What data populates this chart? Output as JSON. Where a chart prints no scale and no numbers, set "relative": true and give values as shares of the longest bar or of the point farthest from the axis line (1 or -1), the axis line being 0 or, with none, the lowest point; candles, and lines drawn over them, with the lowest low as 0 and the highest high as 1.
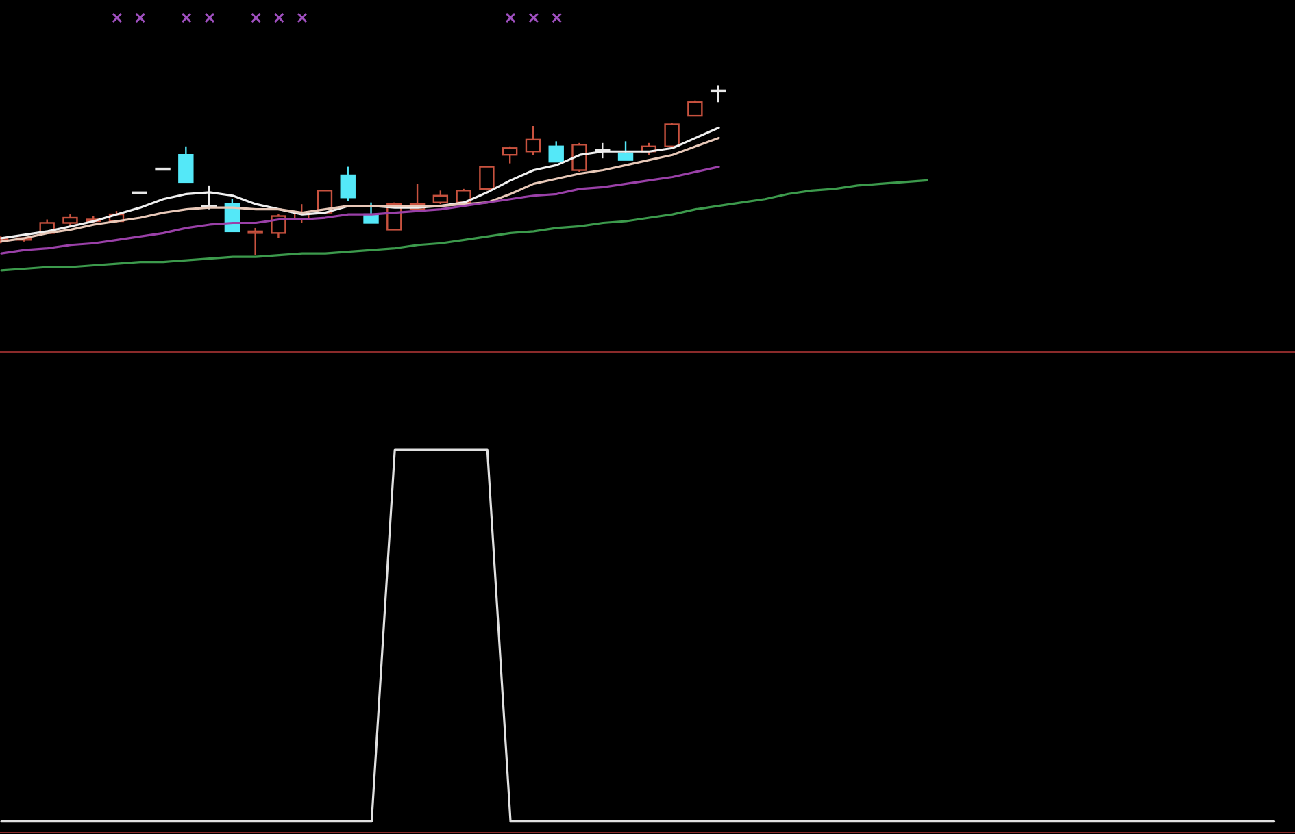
{
  "chart_data": [
    {
      "type": "candlestick",
      "relative": true,
      "tick_labels": false,
      "categories": [
        null,
        null,
        null,
        null,
        null,
        null,
        null,
        null,
        null,
        null,
        null,
        null,
        null,
        null,
        null,
        null,
        null,
        null,
        null,
        null,
        null,
        null,
        null,
        null,
        null,
        null,
        null,
        null,
        null,
        null,
        null,
        null,
        null,
        null,
        null,
        null,
        null,
        null,
        null,
        null,
        null,
        null,
        null,
        null,
        null,
        null,
        null,
        null,
        null,
        null,
        null,
        null,
        null,
        null,
        null,
        null
      ],
      "ohlc": [
        [
          0.09,
          0.11,
          0.07,
          0.1
        ],
        [
          0.09,
          0.1,
          0.08,
          0.1
        ],
        [
          0.13,
          0.21,
          0.13,
          0.19
        ],
        [
          0.19,
          0.24,
          0.17,
          0.22
        ],
        [
          0.2,
          0.23,
          0.19,
          0.21
        ],
        [
          0.2,
          0.26,
          0.19,
          0.24
        ],
        [
          0.37,
          0.37,
          0.37,
          0.37
        ],
        [
          0.51,
          0.51,
          0.51,
          0.51
        ],
        [
          0.59,
          0.64,
          0.43,
          0.43
        ],
        [
          0.29,
          0.41,
          0.27,
          0.29
        ],
        [
          0.3,
          0.33,
          0.14,
          0.14
        ],
        [
          0.13,
          0.16,
          0,
          0.14
        ],
        [
          0.13,
          0.24,
          0.1,
          0.23
        ],
        [
          0.21,
          0.3,
          0.19,
          0.25
        ],
        [
          0.25,
          0.38,
          0.24,
          0.38
        ],
        [
          0.47,
          0.52,
          0.32,
          0.34
        ],
        [
          0.24,
          0.31,
          0.19,
          0.19
        ],
        [
          0.15,
          0.31,
          0.15,
          0.3
        ],
        [
          0.27,
          0.42,
          0.26,
          0.3
        ],
        [
          0.31,
          0.38,
          0.3,
          0.35
        ],
        [
          0.31,
          0.39,
          0.3,
          0.38
        ],
        [
          0.39,
          0.52,
          0.38,
          0.52
        ],
        [
          0.59,
          0.64,
          0.54,
          0.63
        ],
        [
          0.61,
          0.76,
          0.59,
          0.68
        ],
        [
          0.64,
          0.67,
          0.55,
          0.55
        ],
        [
          0.5,
          0.66,
          0.49,
          0.65
        ],
        [
          0.62,
          0.66,
          0.57,
          0.62
        ],
        [
          0.6,
          0.67,
          0.56,
          0.56
        ],
        [
          0.61,
          0.66,
          0.59,
          0.64
        ],
        [
          0.64,
          0.78,
          0.64,
          0.77
        ],
        [
          0.82,
          0.91,
          0.82,
          0.9
        ],
        [
          0.97,
          1,
          0.9,
          0.97
        ],
        null,
        null,
        null,
        null,
        null,
        null,
        null,
        null,
        null,
        null,
        null,
        null,
        null,
        null,
        null,
        null,
        null,
        null,
        null,
        null,
        null,
        null,
        null,
        null
      ],
      "colors": [
        "#c8523f",
        "#c8523f",
        "#c8523f",
        "#c8523f",
        "#c8523f",
        "#c8523f",
        "#e8e8e8",
        "#e8e8e8",
        "#54e8f8",
        "#e8e8e8",
        "#54e8f8",
        "#c8523f",
        "#c8523f",
        "#c8523f",
        "#c8523f",
        "#54e8f8",
        "#54e8f8",
        "#c8523f",
        "#c8523f",
        "#c8523f",
        "#c8523f",
        "#c8523f",
        "#c8523f",
        "#c8523f",
        "#54e8f8",
        "#c8523f",
        "#e8e8e8",
        "#54e8f8",
        "#c8523f",
        "#c8523f",
        "#c8523f",
        "#e8e8e8",
        null,
        null,
        null,
        null,
        null,
        null,
        null,
        null,
        null,
        null,
        null,
        null,
        null,
        null,
        null,
        null,
        null,
        null,
        null,
        null,
        null,
        null,
        null,
        null
      ],
      "series": [
        {
          "type": "line",
          "color": "#f0f0f0",
          "values": [
            0.1,
            0.12,
            0.14,
            0.17,
            0.2,
            0.24,
            0.28,
            0.33,
            0.36,
            0.37,
            0.35,
            0.3,
            0.27,
            0.24,
            0.25,
            0.29,
            0.29,
            0.28,
            0.28,
            0.29,
            0.31,
            0.37,
            0.44,
            0.5,
            0.53,
            0.59,
            0.61,
            0.61,
            0.61,
            0.63,
            0.69,
            0.75,
            null,
            null,
            null,
            null,
            null,
            null,
            null,
            null,
            null,
            null,
            null,
            null,
            null,
            null,
            null,
            null,
            null,
            null,
            null,
            null,
            null,
            null,
            null,
            null
          ]
        },
        {
          "type": "line",
          "color": "#e8c8b8",
          "values": [
            0.08,
            0.1,
            0.13,
            0.15,
            0.18,
            0.2,
            0.22,
            0.25,
            0.27,
            0.28,
            0.28,
            0.27,
            0.27,
            0.25,
            0.27,
            0.29,
            0.29,
            0.29,
            0.29,
            0.29,
            0.3,
            0.31,
            0.36,
            0.42,
            0.45,
            0.48,
            0.5,
            0.53,
            0.56,
            0.59,
            0.64,
            0.69,
            null,
            null,
            null,
            null,
            null,
            null,
            null,
            null,
            null,
            null,
            null,
            null,
            null,
            null,
            null,
            null,
            null,
            null,
            null,
            null,
            null,
            null,
            null,
            null
          ]
        },
        {
          "type": "line",
          "color": "#9a40a8",
          "values": [
            0.01,
            0.03,
            0.04,
            0.06,
            0.07,
            0.09,
            0.11,
            0.13,
            0.16,
            0.18,
            0.19,
            0.19,
            0.21,
            0.21,
            0.22,
            0.24,
            0.24,
            0.25,
            0.26,
            0.27,
            0.29,
            0.31,
            0.33,
            0.35,
            0.36,
            0.39,
            0.4,
            0.42,
            0.44,
            0.46,
            0.49,
            0.52,
            null,
            null,
            null,
            null,
            null,
            null,
            null,
            null,
            null,
            null,
            null,
            null,
            null,
            null,
            null,
            null,
            null,
            null,
            null,
            null,
            null,
            null,
            null,
            null
          ]
        },
        {
          "type": "line",
          "color": "#3c9a4c",
          "values": [
            -0.09,
            -0.08,
            -0.07,
            -0.07,
            -0.06,
            -0.05,
            -0.04,
            -0.04,
            -0.03,
            -0.02,
            -0.01,
            -0.01,
            0,
            0.01,
            0.01,
            0.02,
            0.03,
            0.04,
            0.06,
            0.07,
            0.09,
            0.11,
            0.13,
            0.14,
            0.16,
            0.17,
            0.19,
            0.2,
            0.22,
            0.24,
            0.27,
            0.29,
            0.31,
            0.33,
            0.36,
            0.38,
            0.39,
            0.41,
            0.42,
            0.43,
            0.44,
            null,
            null,
            null,
            null,
            null,
            null,
            null,
            null,
            null,
            null,
            null,
            null,
            null,
            null,
            null
          ]
        }
      ]
    },
    {
      "type": "line",
      "relative": true,
      "tick_labels": false,
      "categories": [
        null,
        null,
        null,
        null,
        null,
        null,
        null,
        null,
        null,
        null,
        null,
        null,
        null,
        null,
        null,
        null,
        null,
        null,
        null,
        null,
        null,
        null,
        null,
        null,
        null,
        null,
        null,
        null,
        null,
        null,
        null,
        null,
        null,
        null,
        null,
        null,
        null,
        null,
        null,
        null,
        null,
        null,
        null,
        null,
        null,
        null,
        null,
        null,
        null,
        null,
        null,
        null,
        null,
        null,
        null,
        null
      ],
      "series": [
        {
          "color": "#e0e0e0",
          "values": [
            0,
            0,
            0,
            0,
            0,
            0,
            0,
            0,
            0,
            0,
            0,
            0,
            0,
            0,
            0,
            0,
            0,
            1,
            1,
            1,
            1,
            1,
            0,
            0,
            0,
            0,
            0,
            0,
            0,
            0,
            0,
            0,
            0,
            0,
            0,
            0,
            0,
            0,
            0,
            0,
            0,
            0,
            0,
            0,
            0,
            0,
            0,
            0,
            0,
            0,
            0,
            0,
            0,
            0,
            0,
            0
          ]
        }
      ]
    }
  ]
}
